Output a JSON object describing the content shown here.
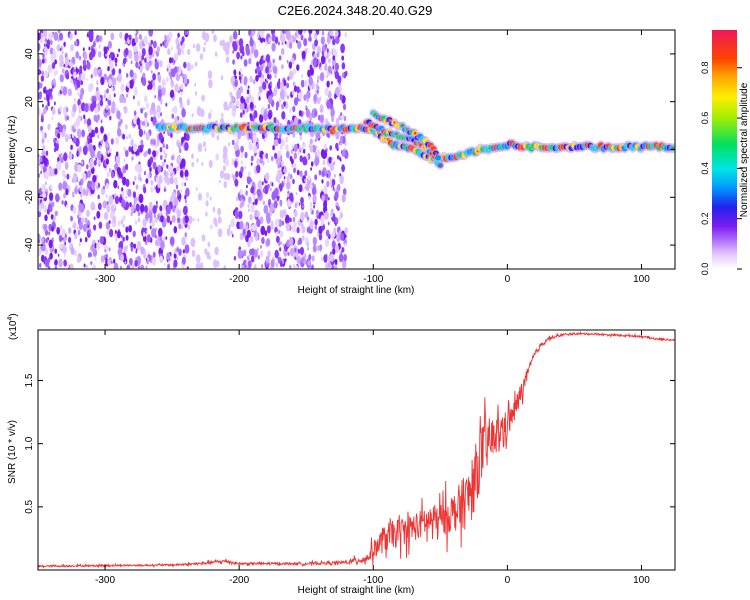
{
  "title": "C2E6.2024.348.20.40.G29",
  "chart_data": [
    {
      "type": "heatmap",
      "xlabel": "Height of straight line (km)",
      "ylabel": "Frequency (Hz)",
      "xlim": [
        -350,
        125
      ],
      "ylim": [
        -50,
        50
      ],
      "xticks": [
        -300,
        -200,
        -100,
        0,
        100
      ],
      "yticks": [
        -40,
        -20,
        0,
        20,
        40
      ],
      "colorbar": {
        "label": "Normalized spectral amplitude",
        "range": [
          0,
          0.95
        ],
        "ticks": [
          0.0,
          0.2,
          0.4,
          0.6,
          0.8
        ]
      },
      "features": [
        {
          "name": "noise_region",
          "x_range": [
            -350,
            -120
          ],
          "y_range": [
            -50,
            50
          ],
          "gap_x_range": [
            -238,
            -205
          ]
        },
        {
          "name": "tone_trace",
          "points": [
            [
              -260,
              9
            ],
            [
              -230,
              9
            ],
            [
              -200,
              9
            ],
            [
              -170,
              9
            ],
            [
              -140,
              9
            ],
            [
              -130,
              8
            ],
            [
              -115,
              9
            ],
            [
              -100,
              8
            ],
            [
              -85,
              2
            ],
            [
              -70,
              0
            ],
            [
              -55,
              -4
            ],
            [
              -40,
              -3
            ],
            [
              -20,
              0
            ],
            [
              0,
              2
            ],
            [
              20,
              1
            ],
            [
              60,
              1
            ],
            [
              125,
              1
            ]
          ]
        },
        {
          "name": "branch_trace",
          "points": [
            [
              -105,
              12
            ],
            [
              -90,
              7
            ],
            [
              -75,
              5
            ],
            [
              -60,
              1
            ],
            [
              -48,
              -8
            ]
          ]
        },
        {
          "name": "secondary_branch",
          "points": [
            [
              -100,
              15
            ],
            [
              -80,
              10
            ],
            [
              -65,
              5
            ],
            [
              -55,
              0
            ],
            [
              -50,
              -6
            ]
          ]
        }
      ]
    },
    {
      "type": "line",
      "xlabel": "Height of straight line (km)",
      "ylabel": "SNR (10 * v/v)",
      "y_multiplier_label": "(x10",
      "y_multiplier_exp": "4",
      "xlim": [
        -350,
        125
      ],
      "ylim": [
        0,
        19000
      ],
      "xticks": [
        -300,
        -200,
        -100,
        0,
        100
      ],
      "yticks": [
        5000,
        10000,
        15000
      ],
      "ytick_labels": [
        "0.5",
        "1.0",
        "1.5"
      ],
      "color": "#ee3333",
      "series": [
        {
          "x": [
            -350,
            -300,
            -250,
            -230,
            -210,
            -200,
            -150,
            -120,
            -105,
            -100,
            -90,
            -80,
            -70,
            -60,
            -50,
            -40,
            -30,
            -25,
            -20,
            -15,
            -10,
            -5,
            0,
            5,
            10,
            15,
            20,
            25,
            30,
            40,
            50,
            60,
            80,
            100,
            110,
            125
          ],
          "y": [
            300,
            350,
            400,
            500,
            700,
            500,
            500,
            600,
            900,
            1600,
            2600,
            3000,
            3400,
            3800,
            4000,
            4600,
            5500,
            7000,
            9000,
            10000,
            10500,
            11000,
            11500,
            12500,
            14000,
            15500,
            17000,
            17800,
            18300,
            18600,
            18700,
            18700,
            18600,
            18500,
            18300,
            18200
          ],
          "spread": [
            150,
            150,
            150,
            250,
            300,
            200,
            200,
            300,
            800,
            1500,
            2500,
            2500,
            2500,
            2500,
            3000,
            3500,
            5000,
            5500,
            5500,
            4500,
            3500,
            3000,
            2500,
            2000,
            1800,
            1000,
            600,
            400,
            300,
            200,
            150,
            150,
            150,
            150,
            150,
            150
          ]
        }
      ]
    }
  ]
}
